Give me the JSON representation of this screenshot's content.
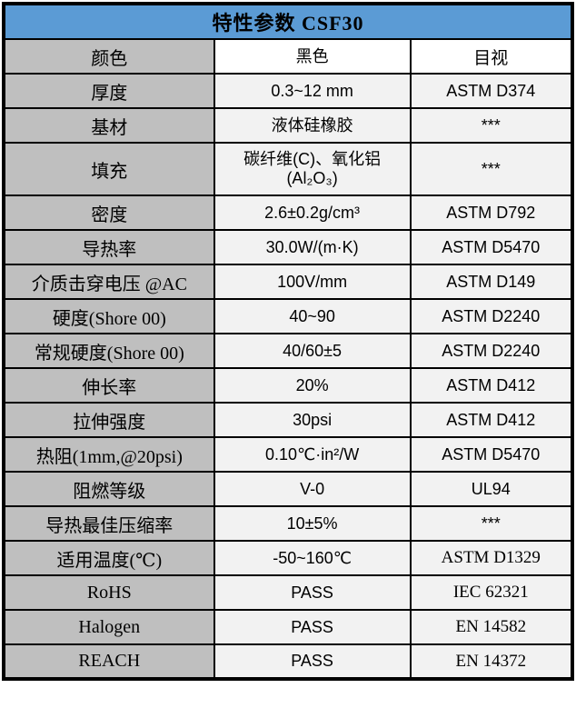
{
  "table": {
    "title": "特性参数 CSF30",
    "rows": [
      {
        "property": "颜色",
        "value": "黑色",
        "method": "目视"
      },
      {
        "property": "厚度",
        "value": "0.3~12 mm",
        "method": "ASTM D374"
      },
      {
        "property": "基材",
        "value": "液体硅橡胶",
        "method": "***"
      },
      {
        "property": "填充",
        "value": "碳纤维(C)、氧化铝(Al₂O₃)",
        "method": "***"
      },
      {
        "property": "密度",
        "value": "2.6±0.2g/cm³",
        "method": "ASTM D792"
      },
      {
        "property": "导热率",
        "value": "30.0W/(m·K)",
        "method": "ASTM D5470"
      },
      {
        "property": "介质击穿电压 @AC",
        "value": "100V/mm",
        "method": "ASTM D149"
      },
      {
        "property": "硬度(Shore 00)",
        "value": "40~90",
        "method": "ASTM D2240"
      },
      {
        "property": "常规硬度(Shore 00)",
        "value": "40/60±5",
        "method": "ASTM D2240"
      },
      {
        "property": "伸长率",
        "value": "20%",
        "method": "ASTM D412"
      },
      {
        "property": "拉伸强度",
        "value": "30psi",
        "method": "ASTM D412"
      },
      {
        "property": "热阻(1mm,@20psi)",
        "value": "0.10℃·in²/W",
        "method": "ASTM D5470"
      },
      {
        "property": "阻燃等级",
        "value": "V-0",
        "method": "UL94"
      },
      {
        "property": "导热最佳压缩率",
        "value": "10±5%",
        "method": "***"
      },
      {
        "property": "适用温度(℃)",
        "value": "-50~160℃",
        "method": "ASTM D1329"
      },
      {
        "property": "RoHS",
        "value": "PASS",
        "method": "IEC 62321"
      },
      {
        "property": "Halogen",
        "value": "PASS",
        "method": "EN 14582"
      },
      {
        "property": "REACH",
        "value": "PASS",
        "method": "EN 14372"
      }
    ],
    "colors": {
      "header_bg": "#5B9BD5",
      "property_bg": "#BFBFBF",
      "cell_bg": "#F2F2F2",
      "border": "#000000"
    }
  }
}
